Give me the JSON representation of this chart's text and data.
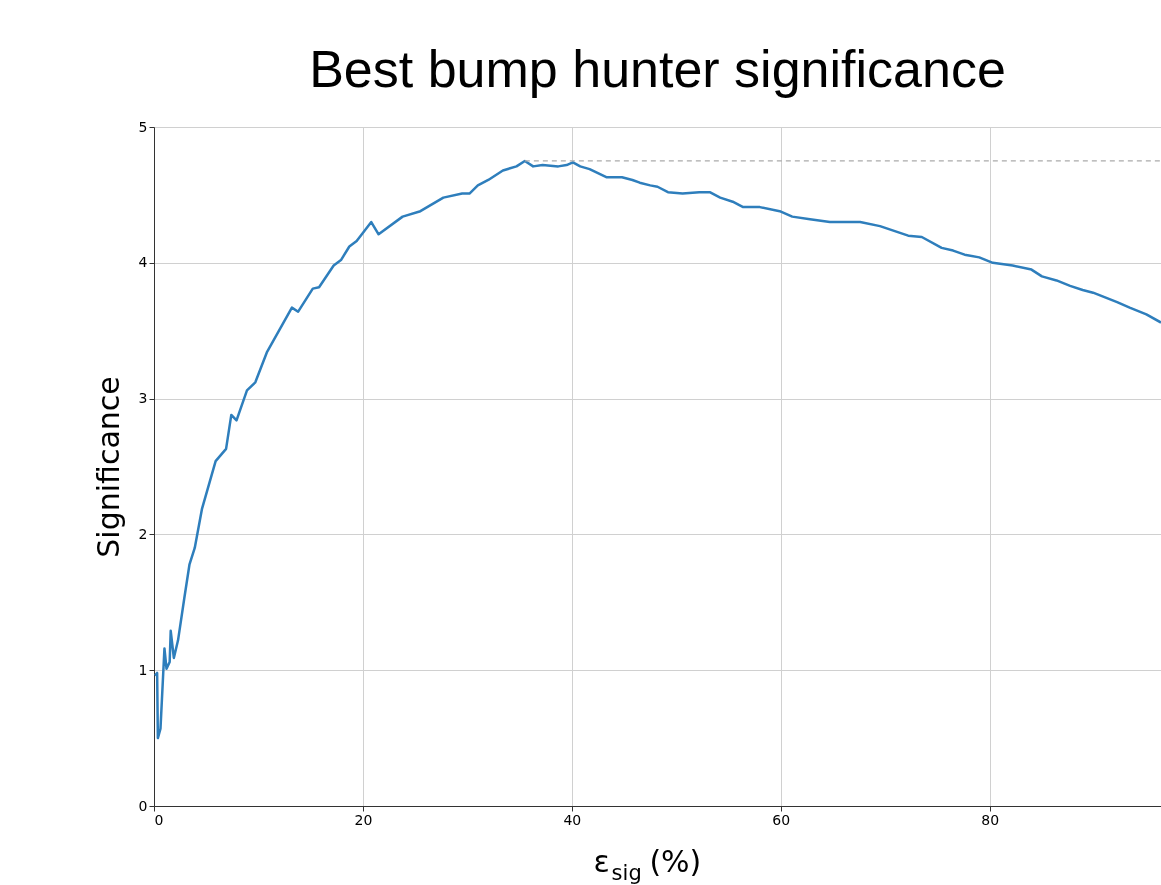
{
  "chart_data": {
    "type": "line",
    "title": "Best bump hunter significance",
    "xlabel": "ε$_{sig}$ (%)",
    "ylabel": "Significance",
    "x": [
      0.1,
      0.3,
      0.37,
      0.62,
      1.0,
      1.2,
      1.5,
      1.6,
      1.9,
      2.3,
      2.9,
      3.4,
      3.9,
      4.6,
      5.9,
      6.9,
      7.4,
      7.9,
      8.9,
      9.7,
      10.8,
      13.2,
      13.8,
      15.2,
      15.8,
      17.2,
      17.9,
      18.7,
      19.4,
      20.8,
      21.5,
      23.8,
      25.5,
      27.7,
      29.5,
      30.2,
      31.0,
      32.0,
      33.4,
      34.7,
      35.5,
      36.3,
      37.2,
      38.7,
      39.5,
      40.1,
      40.8,
      41.7,
      43.3,
      44.8,
      45.8,
      46.5,
      47.5,
      48.2,
      49.2,
      50.6,
      52.2,
      53.2,
      54.2,
      55.4,
      56.4,
      58.0,
      59.9,
      61.1,
      62.8,
      64.7,
      67.6,
      69.5,
      72.2,
      73.5,
      75.4,
      76.5,
      77.6,
      79.0,
      80.3,
      82.2,
      84.0,
      85.0,
      86.4,
      87.7,
      88.9,
      89.9,
      92.2,
      93.4,
      95.0,
      96.4
    ],
    "series": [
      {
        "color": "#2e7ebc",
        "values": [
          0.96,
          0.98,
          0.5,
          0.57,
          1.16,
          1.01,
          1.06,
          1.29,
          1.09,
          1.22,
          1.53,
          1.78,
          1.9,
          2.19,
          2.54,
          2.63,
          2.88,
          2.84,
          3.06,
          3.12,
          3.34,
          3.67,
          3.64,
          3.81,
          3.82,
          3.98,
          4.02,
          4.12,
          4.16,
          4.3,
          4.21,
          4.34,
          4.38,
          4.48,
          4.51,
          4.51,
          4.57,
          4.61,
          4.68,
          4.71,
          4.75,
          4.71,
          4.72,
          4.71,
          4.72,
          4.74,
          4.71,
          4.69,
          4.63,
          4.63,
          4.61,
          4.59,
          4.57,
          4.56,
          4.52,
          4.51,
          4.52,
          4.52,
          4.48,
          4.45,
          4.41,
          4.41,
          4.38,
          4.34,
          4.32,
          4.3,
          4.3,
          4.27,
          4.2,
          4.19,
          4.11,
          4.09,
          4.06,
          4.04,
          4.0,
          3.98,
          3.95,
          3.9,
          3.87,
          3.83,
          3.8,
          3.78,
          3.71,
          3.67,
          3.62,
          3.56
        ]
      }
    ],
    "xlim": [
      0,
      96.4
    ],
    "ylim": [
      0,
      5
    ],
    "xticks": [
      0,
      20,
      40,
      60,
      80
    ],
    "yticks": [
      0,
      1,
      2,
      3,
      4,
      5
    ],
    "ref_lines": [
      {
        "axis": "y",
        "value": 4.75,
        "color": "#aaaaaa",
        "line_style": "dashed"
      }
    ],
    "grid": true,
    "line_style": "solid",
    "marker": "none"
  }
}
